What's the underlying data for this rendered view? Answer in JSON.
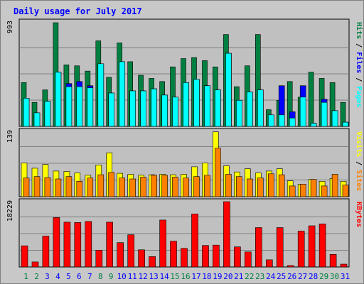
{
  "chart_data": {
    "type": "bar",
    "title": "Daily usage for July 2017",
    "categories": [
      "1",
      "2",
      "3",
      "4",
      "5",
      "6",
      "7",
      "8",
      "9",
      "10",
      "11",
      "12",
      "13",
      "14",
      "15",
      "16",
      "17",
      "18",
      "19",
      "20",
      "21",
      "22",
      "23",
      "24",
      "25",
      "26",
      "27",
      "28",
      "29",
      "30",
      "31"
    ],
    "weekend_days": [
      "1",
      "2",
      "8",
      "9",
      "15",
      "16",
      "22",
      "23",
      "29",
      "30"
    ],
    "panels": [
      {
        "id": "top",
        "ylabel": "Pages / Files / Hits",
        "ymax_label": "993",
        "ylim": [
          0,
          1000
        ],
        "series": [
          {
            "name": "Hits",
            "color": "#008040",
            "values": [
              420,
              230,
              350,
              993,
              590,
              580,
              530,
              820,
              470,
              800,
              620,
              490,
              460,
              430,
              570,
              650,
              660,
              630,
              570,
              880,
              380,
              580,
              880,
              160,
              250,
              430,
              280,
              520,
              460,
              420,
              230
            ]
          },
          {
            "name": "Files",
            "color": "#0000ff",
            "values": [
              270,
              130,
              240,
              520,
              410,
              430,
              390,
              600,
              320,
              620,
              340,
              340,
              360,
              300,
              280,
              420,
              450,
              390,
              350,
              700,
              250,
              330,
              350,
              110,
              390,
              140,
              390,
              30,
              260,
              150,
              40
            ]
          },
          {
            "name": "Pages",
            "color": "#00ffff",
            "values": [
              270,
              130,
              240,
              520,
              380,
              380,
              370,
              600,
              320,
              620,
              340,
              340,
              360,
              300,
              280,
              420,
              450,
              390,
              350,
              700,
              250,
              330,
              350,
              110,
              110,
              80,
              280,
              30,
              230,
              150,
              40
            ]
          }
        ]
      },
      {
        "id": "middle",
        "ylabel": "Sites / Visits",
        "ymax_label": "139",
        "ylim": [
          0,
          140
        ],
        "series": [
          {
            "name": "Visits",
            "color": "#ffff00",
            "values": [
              72,
              61,
              69,
              55,
              54,
              51,
              46,
              68,
              94,
              50,
              48,
              46,
              47,
              48,
              47,
              48,
              64,
              72,
              139,
              66,
              53,
              60,
              51,
              55,
              60,
              34,
              27,
              37,
              33,
              39,
              33
            ]
          },
          {
            "name": "Sites",
            "color": "#ff8000",
            "values": [
              40,
              43,
              41,
              38,
              43,
              33,
              40,
              47,
              52,
              40,
              38,
              42,
              46,
              46,
              42,
              40,
              43,
              46,
              104,
              48,
              43,
              38,
              40,
              49,
              47,
              23,
              27,
              37,
              23,
              48,
              25
            ]
          }
        ]
      },
      {
        "id": "bottom",
        "ylabel": "KBytes",
        "ymax_label": "18229",
        "ylim": [
          0,
          18229
        ],
        "series": [
          {
            "name": "KBytes",
            "color": "#ff0000",
            "values": [
              5900,
              1400,
              8600,
              13800,
              12500,
              12400,
              12700,
              4700,
              12500,
              6800,
              9000,
              4800,
              2900,
              13100,
              7200,
              5200,
              14800,
              6000,
              6100,
              18229,
              5600,
              4200,
              11000,
              2000,
              11000,
              400,
              10000,
              11500,
              12000,
              3500,
              800
            ]
          }
        ]
      }
    ],
    "legend_placement": "right (vertical text per panel)"
  },
  "colors": {
    "background": "#c8c8c8",
    "plot_bg": "#c0c0c0",
    "title": "#0000ff",
    "weekday_label": "#0000ff",
    "weekend_label": "#008040",
    "grid": "#808080"
  }
}
